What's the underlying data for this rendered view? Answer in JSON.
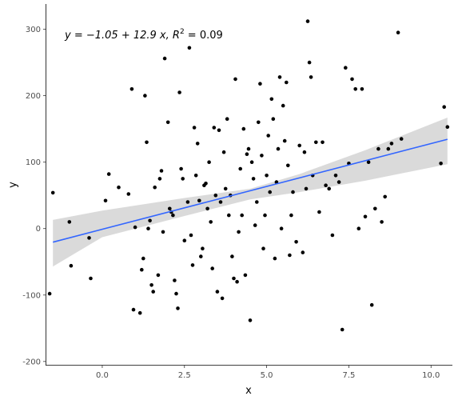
{
  "chart_data": {
    "type": "scatter",
    "annotation": {
      "text_main": "y = −1.05 + 12.9 x, ",
      "r_symbol": "R",
      "r_power": "2",
      "r_value": " = 0.09"
    },
    "xlabel": "x",
    "ylabel": "y",
    "xlim": [
      -1.7,
      10.65
    ],
    "ylim": [
      -205,
      338
    ],
    "xticks": [
      0.0,
      2.5,
      5.0,
      7.5,
      10.0
    ],
    "xtick_labels": [
      "0.0",
      "2.5",
      "5.0",
      "7.5",
      "10.0"
    ],
    "yticks": [
      -200,
      -100,
      0,
      100,
      200,
      300
    ],
    "ytick_labels": [
      "-200",
      "-100",
      "0",
      "100",
      "200",
      "300"
    ],
    "grid": false,
    "colors": {
      "points": "#000000",
      "fit_line": "#3366FF",
      "confidence_band": "#d3d3d3"
    },
    "fit": {
      "intercept": -1.05,
      "slope": 12.9,
      "x_range": [
        -1.5,
        10.5
      ]
    },
    "confidence_band": [
      {
        "x": -1.5,
        "lower": -57,
        "upper": 13
      },
      {
        "x": 0,
        "lower": -13,
        "upper": 27
      },
      {
        "x": 2.5,
        "lower": 19,
        "upper": 46
      },
      {
        "x": 4.5,
        "lower": 44,
        "upper": 60
      },
      {
        "x": 6.0,
        "lower": 55,
        "upper": 82
      },
      {
        "x": 8.0,
        "lower": 72,
        "upper": 118
      },
      {
        "x": 10.5,
        "lower": 97,
        "upper": 167
      }
    ],
    "points": [
      [
        -1.6,
        -98
      ],
      [
        -1.5,
        54
      ],
      [
        -1.0,
        10
      ],
      [
        -0.95,
        -56
      ],
      [
        -0.4,
        -14
      ],
      [
        -0.35,
        -75
      ],
      [
        0.1,
        42
      ],
      [
        0.2,
        82
      ],
      [
        0.5,
        62
      ],
      [
        0.8,
        52
      ],
      [
        0.9,
        210
      ],
      [
        0.95,
        -122
      ],
      [
        1.0,
        2
      ],
      [
        1.15,
        -127
      ],
      [
        1.2,
        -62
      ],
      [
        1.25,
        -45
      ],
      [
        1.3,
        200
      ],
      [
        1.35,
        130
      ],
      [
        1.4,
        0
      ],
      [
        1.45,
        12
      ],
      [
        1.5,
        -85
      ],
      [
        1.55,
        -95
      ],
      [
        1.6,
        62
      ],
      [
        1.7,
        -70
      ],
      [
        1.75,
        75
      ],
      [
        1.8,
        87
      ],
      [
        1.85,
        -5
      ],
      [
        1.9,
        256
      ],
      [
        2.0,
        160
      ],
      [
        2.05,
        30
      ],
      [
        2.1,
        25
      ],
      [
        2.15,
        20
      ],
      [
        2.2,
        -78
      ],
      [
        2.25,
        -98
      ],
      [
        2.3,
        -120
      ],
      [
        2.35,
        205
      ],
      [
        2.4,
        90
      ],
      [
        2.45,
        75
      ],
      [
        2.5,
        -18
      ],
      [
        2.6,
        40
      ],
      [
        2.65,
        272
      ],
      [
        2.7,
        -10
      ],
      [
        2.75,
        -55
      ],
      [
        2.8,
        152
      ],
      [
        2.85,
        80
      ],
      [
        2.9,
        128
      ],
      [
        2.95,
        42
      ],
      [
        3.0,
        -42
      ],
      [
        3.05,
        -30
      ],
      [
        3.1,
        65
      ],
      [
        3.15,
        68
      ],
      [
        3.2,
        30
      ],
      [
        3.25,
        100
      ],
      [
        3.3,
        10
      ],
      [
        3.35,
        -60
      ],
      [
        3.4,
        152
      ],
      [
        3.45,
        50
      ],
      [
        3.5,
        -95
      ],
      [
        3.55,
        148
      ],
      [
        3.6,
        40
      ],
      [
        3.65,
        -105
      ],
      [
        3.7,
        115
      ],
      [
        3.75,
        60
      ],
      [
        3.8,
        165
      ],
      [
        3.85,
        20
      ],
      [
        3.9,
        50
      ],
      [
        3.95,
        -42
      ],
      [
        4.0,
        -75
      ],
      [
        4.05,
        225
      ],
      [
        4.1,
        -80
      ],
      [
        4.15,
        -5
      ],
      [
        4.2,
        90
      ],
      [
        4.25,
        20
      ],
      [
        4.3,
        150
      ],
      [
        4.35,
        -70
      ],
      [
        4.4,
        112
      ],
      [
        4.45,
        120
      ],
      [
        4.5,
        -138
      ],
      [
        4.55,
        100
      ],
      [
        4.6,
        75
      ],
      [
        4.65,
        5
      ],
      [
        4.7,
        40
      ],
      [
        4.75,
        160
      ],
      [
        4.8,
        218
      ],
      [
        4.85,
        110
      ],
      [
        4.9,
        -30
      ],
      [
        4.95,
        20
      ],
      [
        5.0,
        80
      ],
      [
        5.05,
        140
      ],
      [
        5.1,
        55
      ],
      [
        5.15,
        195
      ],
      [
        5.2,
        165
      ],
      [
        5.25,
        -45
      ],
      [
        5.3,
        70
      ],
      [
        5.35,
        120
      ],
      [
        5.4,
        228
      ],
      [
        5.45,
        0
      ],
      [
        5.5,
        185
      ],
      [
        5.55,
        132
      ],
      [
        5.6,
        220
      ],
      [
        5.65,
        95
      ],
      [
        5.7,
        -40
      ],
      [
        5.75,
        20
      ],
      [
        5.8,
        55
      ],
      [
        5.9,
        -20
      ],
      [
        6.0,
        125
      ],
      [
        6.1,
        -36
      ],
      [
        6.15,
        115
      ],
      [
        6.2,
        60
      ],
      [
        6.25,
        312
      ],
      [
        6.3,
        250
      ],
      [
        6.35,
        228
      ],
      [
        6.4,
        80
      ],
      [
        6.5,
        130
      ],
      [
        6.6,
        25
      ],
      [
        6.7,
        130
      ],
      [
        6.8,
        65
      ],
      [
        6.9,
        60
      ],
      [
        7.0,
        -10
      ],
      [
        7.1,
        80
      ],
      [
        7.2,
        70
      ],
      [
        7.3,
        -152
      ],
      [
        7.4,
        242
      ],
      [
        7.5,
        98
      ],
      [
        7.6,
        225
      ],
      [
        7.7,
        210
      ],
      [
        7.8,
        0
      ],
      [
        7.9,
        210
      ],
      [
        8.0,
        18
      ],
      [
        8.1,
        100
      ],
      [
        8.2,
        -115
      ],
      [
        8.3,
        30
      ],
      [
        8.4,
        120
      ],
      [
        8.5,
        10
      ],
      [
        8.6,
        48
      ],
      [
        8.7,
        120
      ],
      [
        8.8,
        128
      ],
      [
        9.0,
        295
      ],
      [
        9.1,
        135
      ],
      [
        10.3,
        98
      ],
      [
        10.4,
        183
      ],
      [
        10.5,
        153
      ]
    ]
  }
}
